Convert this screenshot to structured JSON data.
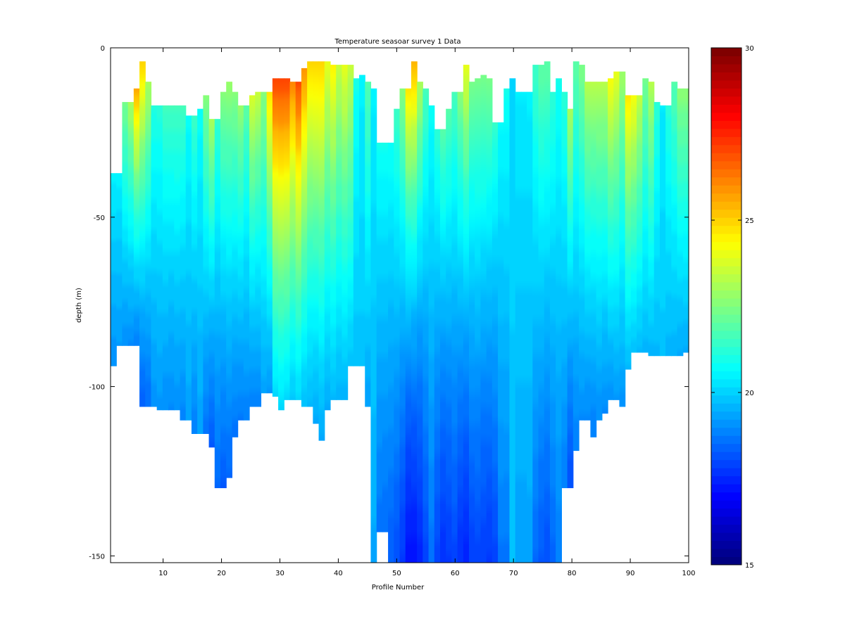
{
  "chart_data": {
    "type": "heatmap",
    "title": "Temperature seasoar survey 1 Data",
    "xlabel": "Profile Number",
    "ylabel": "depth (m)",
    "xlim": [
      1,
      100
    ],
    "ylim": [
      -152,
      0
    ],
    "xticks": [
      "10",
      "20",
      "30",
      "40",
      "50",
      "60",
      "70",
      "80",
      "90",
      "100"
    ],
    "xtick_values": [
      10,
      20,
      30,
      40,
      50,
      60,
      70,
      80,
      90,
      100
    ],
    "yticks": [
      "0",
      "-50",
      "-100",
      "-150"
    ],
    "ytick_values": [
      0,
      -50,
      -100,
      -150
    ],
    "colorbar": {
      "min": 15,
      "max": 30,
      "ticks": [
        "15",
        "20",
        "25",
        "30"
      ],
      "tick_values": [
        15,
        20,
        25,
        30
      ],
      "colormap": "jet"
    },
    "grid": false,
    "deep_temperature": 15,
    "profiles": {
      "top_depth": [
        37,
        37,
        16,
        16,
        12,
        4,
        10,
        17,
        17,
        17,
        17,
        17,
        17,
        20,
        20,
        18,
        14,
        21,
        21,
        13,
        10,
        13,
        17,
        17,
        14,
        13,
        13,
        13,
        9,
        9,
        9,
        10,
        10,
        6,
        4,
        4,
        4,
        4,
        5,
        5,
        5,
        5,
        9,
        8,
        10,
        12,
        28,
        28,
        28,
        18,
        12,
        12,
        4,
        10,
        12,
        17,
        24,
        24,
        18,
        13,
        13,
        5,
        10,
        9,
        8,
        9,
        22,
        22,
        12,
        9,
        13,
        13,
        13,
        5,
        5,
        4,
        13,
        9,
        13,
        18,
        4,
        5,
        10,
        10,
        10,
        10,
        9,
        7,
        7,
        14,
        14,
        14,
        9,
        10,
        16,
        17,
        17,
        10,
        12,
        12
      ],
      "bottom_depth": [
        94,
        88,
        88,
        88,
        88,
        106,
        106,
        106,
        107,
        107,
        107,
        107,
        110,
        110,
        114,
        114,
        114,
        118,
        130,
        130,
        127,
        115,
        110,
        110,
        106,
        106,
        102,
        102,
        103,
        107,
        104,
        104,
        104,
        106,
        106,
        111,
        116,
        107,
        104,
        104,
        104,
        94,
        94,
        94,
        106,
        152,
        143,
        143,
        152,
        152,
        152,
        152,
        152,
        152,
        152,
        152,
        152,
        152,
        152,
        152,
        152,
        152,
        152,
        152,
        152,
        152,
        152,
        152,
        152,
        152,
        152,
        152,
        152,
        152,
        152,
        152,
        152,
        152,
        130,
        130,
        119,
        110,
        110,
        115,
        110,
        108,
        104,
        104,
        106,
        95,
        90,
        90,
        90,
        91,
        91,
        91,
        91,
        91,
        91,
        90
      ],
      "surface_temperature": [
        21.5,
        21.5,
        23,
        24,
        26.5,
        25,
        23.5,
        21.5,
        21.5,
        22,
        22,
        22,
        22,
        21,
        22,
        21,
        23,
        24.5,
        22,
        23,
        23,
        23,
        23.5,
        22.5,
        24.5,
        24,
        23,
        25.5,
        27.5,
        27.5,
        27.5,
        26.5,
        27.5,
        26,
        25,
        25,
        25,
        24,
        24.5,
        23.5,
        24,
        23.5,
        21,
        20.5,
        22,
        20.5,
        21.5,
        21.5,
        21.5,
        22,
        23,
        25.5,
        25.5,
        23.5,
        22,
        21,
        22,
        23,
        22.5,
        22,
        23,
        24,
        22.5,
        22.5,
        22.5,
        22.5,
        22,
        21,
        21,
        20,
        20.5,
        20.5,
        20.5,
        21.5,
        22,
        22,
        21.5,
        21,
        21.5,
        24,
        22,
        22.5,
        23.5,
        23.5,
        23.5,
        23.5,
        24.5,
        24,
        23,
        25.5,
        25,
        24,
        22.5,
        23.5,
        21.5,
        20.5,
        21.5,
        22,
        23,
        23
      ],
      "isotherm_20c_depth": [
        45,
        45,
        52,
        55,
        58,
        60,
        56,
        52,
        54,
        56,
        55,
        57,
        55,
        52,
        56,
        54,
        60,
        62,
        55,
        60,
        62,
        60,
        62,
        58,
        66,
        64,
        68,
        72,
        95,
        98,
        96,
        90,
        94,
        88,
        85,
        84,
        88,
        80,
        82,
        78,
        80,
        76,
        62,
        58,
        64,
        56,
        55,
        54,
        52,
        55,
        58,
        62,
        64,
        56,
        52,
        48,
        52,
        56,
        54,
        52,
        56,
        60,
        56,
        58,
        55,
        54,
        52,
        50,
        50,
        46,
        50,
        50,
        52,
        56,
        58,
        56,
        54,
        52,
        55,
        62,
        58,
        62,
        66,
        66,
        68,
        66,
        70,
        70,
        66,
        76,
        74,
        70,
        64,
        68,
        60,
        56,
        58,
        60,
        62,
        62
      ]
    }
  }
}
